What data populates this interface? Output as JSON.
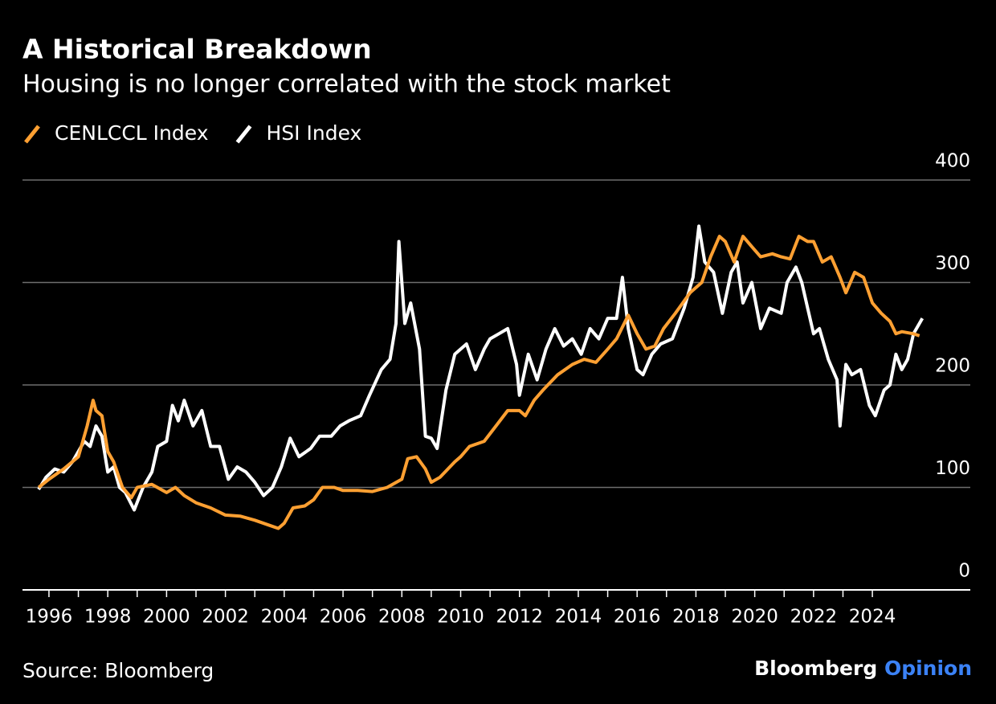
{
  "chart_data": {
    "type": "line",
    "title": "A Historical Breakdown",
    "subtitle": "Housing is no longer correlated with the stock market",
    "source": "Source: Bloomberg",
    "brand": {
      "name": "Bloomberg",
      "suffix": "Opinion"
    },
    "xlim": [
      1995.1,
      2027.33
    ],
    "xticks": [
      1996,
      1998,
      2000,
      2002,
      2004,
      2006,
      2008,
      2010,
      2012,
      2014,
      2016,
      2018,
      2020,
      2022,
      2024
    ],
    "ylim": [
      0,
      400
    ],
    "yticks": [
      0,
      100,
      200,
      300,
      400
    ],
    "grid": true,
    "series": [
      {
        "name": "CENLCCL Index",
        "color": "#ffa032",
        "x": [
          1995.65,
          1996.0,
          1996.5,
          1997.0,
          1997.3,
          1997.5,
          1997.6,
          1997.8,
          1998.0,
          1998.2,
          1998.5,
          1998.8,
          1999.0,
          1999.5,
          2000.0,
          2000.3,
          2000.6,
          2001.0,
          2001.5,
          2002.0,
          2002.5,
          2003.0,
          2003.5,
          2003.8,
          2004.0,
          2004.3,
          2004.7,
          2005.0,
          2005.3,
          2005.7,
          2006.0,
          2006.5,
          2007.0,
          2007.5,
          2008.0,
          2008.2,
          2008.5,
          2008.8,
          2009.0,
          2009.3,
          2009.8,
          2010.0,
          2010.3,
          2010.8,
          2011.2,
          2011.6,
          2012.0,
          2012.2,
          2012.5,
          2012.8,
          2013.3,
          2013.8,
          2014.2,
          2014.6,
          2015.0,
          2015.3,
          2015.7,
          2016.0,
          2016.3,
          2016.6,
          2016.9,
          2017.3,
          2017.8,
          2018.2,
          2018.5,
          2018.8,
          2019.0,
          2019.3,
          2019.6,
          2019.9,
          2020.2,
          2020.6,
          2020.9,
          2021.2,
          2021.5,
          2021.8,
          2022.0,
          2022.3,
          2022.6,
          2022.9,
          2023.1,
          2023.4,
          2023.7,
          2024.0,
          2024.3,
          2024.6,
          2024.8,
          2025.0,
          2025.4,
          2025.6
        ],
        "values": [
          100,
          108,
          118,
          130,
          160,
          185,
          175,
          170,
          135,
          125,
          100,
          90,
          100,
          103,
          95,
          100,
          92,
          85,
          80,
          73,
          72,
          68,
          63,
          60,
          65,
          80,
          82,
          88,
          100,
          100,
          97,
          97,
          96,
          100,
          108,
          128,
          130,
          118,
          105,
          110,
          125,
          130,
          140,
          145,
          160,
          175,
          175,
          170,
          185,
          195,
          210,
          220,
          225,
          222,
          235,
          245,
          268,
          250,
          235,
          238,
          255,
          270,
          290,
          300,
          325,
          345,
          340,
          320,
          345,
          335,
          325,
          328,
          325,
          323,
          345,
          340,
          340,
          320,
          325,
          305,
          290,
          310,
          305,
          280,
          270,
          262,
          250,
          252,
          250,
          248
        ]
      },
      {
        "name": "HSI Index",
        "color": "#ffffff",
        "x": [
          1995.65,
          1995.9,
          1996.2,
          1996.5,
          1996.8,
          1997.2,
          1997.4,
          1997.6,
          1997.8,
          1998.0,
          1998.2,
          1998.4,
          1998.6,
          1998.9,
          1999.2,
          1999.5,
          1999.7,
          2000.0,
          2000.2,
          2000.4,
          2000.6,
          2000.9,
          2001.2,
          2001.5,
          2001.8,
          2002.1,
          2002.4,
          2002.7,
          2003.0,
          2003.3,
          2003.6,
          2003.9,
          2004.2,
          2004.5,
          2004.9,
          2005.2,
          2005.6,
          2005.9,
          2006.2,
          2006.6,
          2006.9,
          2007.3,
          2007.6,
          2007.8,
          2007.9,
          2008.1,
          2008.3,
          2008.6,
          2008.8,
          2009.0,
          2009.2,
          2009.5,
          2009.8,
          2010.2,
          2010.5,
          2010.8,
          2011.0,
          2011.3,
          2011.6,
          2011.9,
          2012.0,
          2012.3,
          2012.6,
          2012.9,
          2013.2,
          2013.5,
          2013.8,
          2014.1,
          2014.4,
          2014.7,
          2015.0,
          2015.3,
          2015.5,
          2015.7,
          2016.0,
          2016.2,
          2016.5,
          2016.8,
          2017.2,
          2017.6,
          2017.9,
          2018.1,
          2018.3,
          2018.6,
          2018.9,
          2019.2,
          2019.4,
          2019.6,
          2019.9,
          2020.2,
          2020.5,
          2020.9,
          2021.1,
          2021.4,
          2021.6,
          2021.8,
          2022.0,
          2022.2,
          2022.5,
          2022.8,
          2022.9,
          2023.1,
          2023.3,
          2023.6,
          2023.9,
          2024.1,
          2024.4,
          2024.6,
          2024.8,
          2025.0,
          2025.2,
          2025.4,
          2025.7
        ],
        "values": [
          98,
          110,
          118,
          115,
          125,
          145,
          140,
          160,
          150,
          115,
          120,
          100,
          95,
          78,
          100,
          115,
          140,
          145,
          180,
          165,
          185,
          160,
          175,
          140,
          140,
          108,
          120,
          115,
          105,
          92,
          100,
          120,
          148,
          130,
          138,
          150,
          150,
          160,
          165,
          170,
          190,
          215,
          225,
          260,
          340,
          260,
          280,
          235,
          150,
          148,
          138,
          195,
          230,
          240,
          215,
          235,
          245,
          250,
          255,
          220,
          190,
          230,
          205,
          235,
          255,
          238,
          245,
          230,
          255,
          245,
          265,
          265,
          305,
          255,
          215,
          210,
          230,
          240,
          245,
          275,
          305,
          355,
          320,
          310,
          270,
          310,
          320,
          280,
          300,
          255,
          275,
          270,
          300,
          315,
          300,
          275,
          250,
          255,
          225,
          205,
          160,
          220,
          210,
          215,
          180,
          170,
          195,
          200,
          230,
          215,
          225,
          250,
          265
        ]
      }
    ]
  }
}
